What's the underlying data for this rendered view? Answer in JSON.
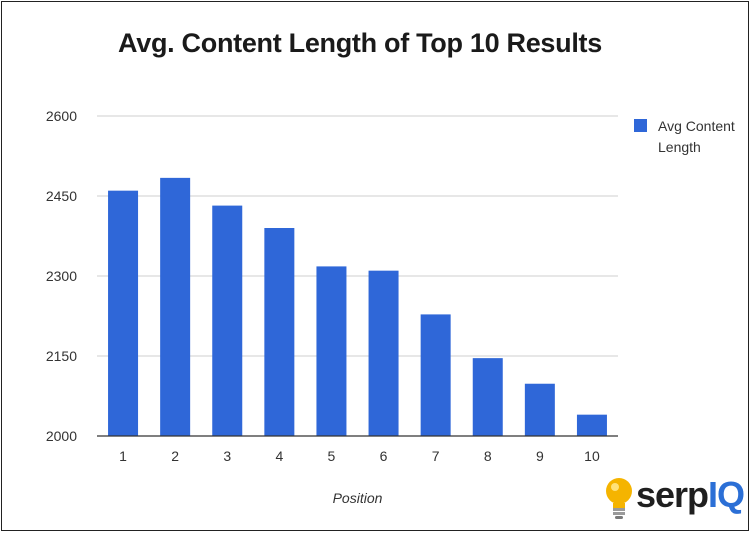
{
  "chart_data": {
    "type": "bar",
    "title": "Avg. Content Length of Top 10 Results",
    "xlabel": "Position",
    "ylabel": "",
    "categories": [
      "1",
      "2",
      "3",
      "4",
      "5",
      "6",
      "7",
      "8",
      "9",
      "10"
    ],
    "series": [
      {
        "name": "Avg Content Length",
        "values": [
          2460,
          2484,
          2432,
          2390,
          2318,
          2310,
          2228,
          2146,
          2098,
          2040
        ]
      }
    ],
    "ylim": [
      2000,
      2600
    ],
    "yticks": [
      2000,
      2150,
      2300,
      2450,
      2600
    ],
    "grid": true,
    "legend_position": "right",
    "bar_color": "#2f67d8"
  },
  "logo": {
    "text_dark": "serp",
    "text_blue": "IQ"
  }
}
